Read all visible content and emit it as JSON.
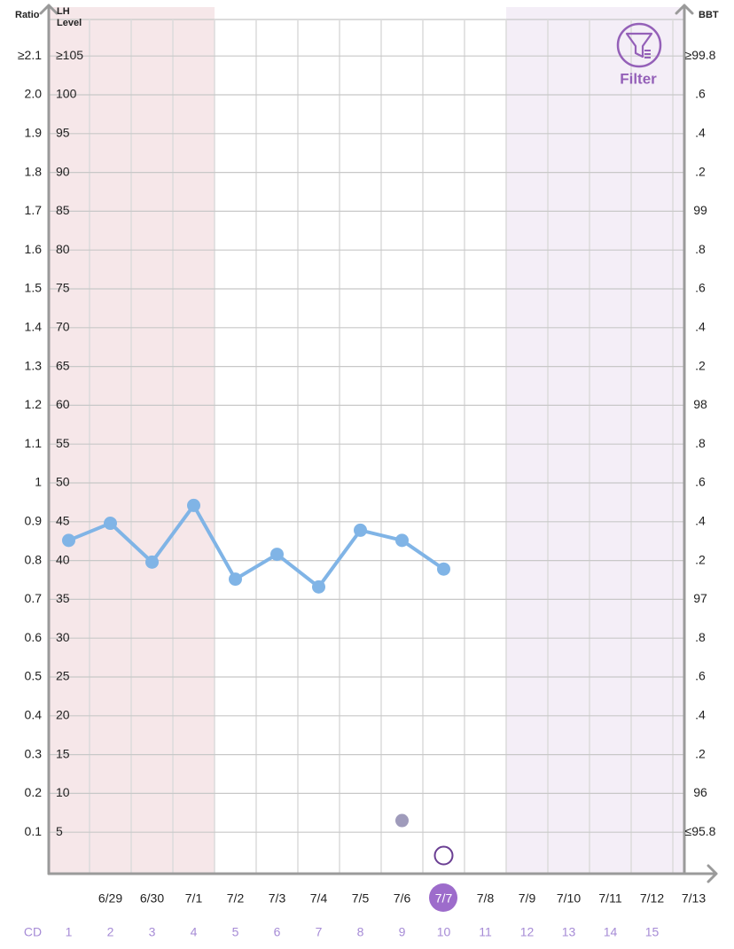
{
  "chart_data": {
    "type": "line",
    "ratio_label": "Ratio",
    "y_label": "LH Level",
    "y2_label": "BBT",
    "filter_label": "Filter",
    "categories": [
      null,
      "6/29",
      "6/30",
      "7/1",
      "7/2",
      "7/3",
      "7/4",
      "7/5",
      "7/6",
      "7/7",
      "7/8",
      "7/9",
      "7/10",
      "7/11",
      "7/12",
      "7/13"
    ],
    "cycle_day_label": "CD",
    "cycle_days": [
      1,
      2,
      3,
      4,
      5,
      6,
      7,
      8,
      9,
      10,
      11,
      12,
      13,
      14,
      15,
      null
    ],
    "ylim": [
      0,
      110
    ],
    "yticks": [
      {
        "value": 105,
        "label": "≥105"
      },
      100,
      95,
      90,
      85,
      80,
      75,
      70,
      65,
      60,
      55,
      50,
      45,
      40,
      35,
      30,
      25,
      20,
      15,
      10,
      5
    ],
    "ratio_ylim": [
      0,
      2.2
    ],
    "ratio_yticks": [
      {
        "value": 2.1,
        "label": "≥2.1"
      },
      {
        "value": 2,
        "label": "2.0"
      },
      1.9,
      1.8,
      1.7,
      1.6,
      1.5,
      1.4,
      1.3,
      1.2,
      1.1,
      1,
      0.9,
      0.8,
      0.7,
      0.6,
      0.5,
      0.4,
      0.3,
      0.2,
      0.1
    ],
    "y2lim": [
      95.6,
      100.0
    ],
    "y2ticks": [
      {
        "value": 99.8,
        "label": "≥99.8"
      },
      {
        "value": 99.6,
        "label": ".6"
      },
      {
        "value": 99.4,
        "label": ".4"
      },
      {
        "value": 99.2,
        "label": ".2"
      },
      99,
      {
        "value": 98.8,
        "label": ".8"
      },
      {
        "value": 98.6,
        "label": ".6"
      },
      {
        "value": 98.4,
        "label": ".4"
      },
      {
        "value": 98.2,
        "label": ".2"
      },
      98,
      {
        "value": 97.8,
        "label": ".8"
      },
      {
        "value": 97.6,
        "label": ".6"
      },
      {
        "value": 97.4,
        "label": ".4"
      },
      {
        "value": 97.2,
        "label": ".2"
      },
      97,
      {
        "value": 96.8,
        "label": ".8"
      },
      {
        "value": 96.6,
        "label": ".6"
      },
      {
        "value": 96.4,
        "label": ".4"
      },
      {
        "value": 96.2,
        "label": ".2"
      },
      96,
      {
        "value": 95.8,
        "label": "≤95.8"
      }
    ],
    "grid": true,
    "series": [
      {
        "type": "line",
        "color": "#80b4e6",
        "values": [
          42.6,
          44.8,
          39.8,
          47.1,
          37.6,
          40.8,
          36.6,
          43.9,
          42.6,
          38.9,
          null,
          null,
          null,
          null,
          null,
          null
        ]
      },
      {
        "type": "scatter",
        "axis": "y2",
        "color": "#9f9bbb",
        "marker": "filled",
        "values": [
          null,
          null,
          null,
          null,
          null,
          null,
          null,
          null,
          95.86,
          null,
          null,
          null,
          null,
          null,
          null,
          null
        ]
      },
      {
        "type": "scatter",
        "axis": "y2",
        "color": "#6b3f93",
        "marker": "hollow",
        "values": [
          null,
          null,
          null,
          null,
          null,
          null,
          null,
          null,
          null,
          95.68,
          null,
          null,
          null,
          null,
          null,
          null
        ]
      }
    ]
  }
}
